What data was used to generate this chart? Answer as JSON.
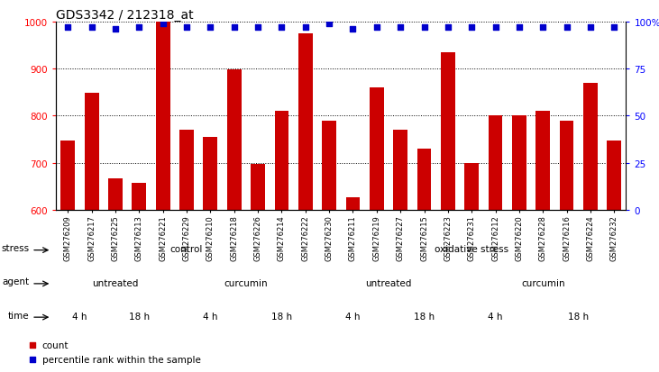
{
  "title": "GDS3342 / 212318_at",
  "samples": [
    "GSM276209",
    "GSM276217",
    "GSM276225",
    "GSM276213",
    "GSM276221",
    "GSM276229",
    "GSM276210",
    "GSM276218",
    "GSM276226",
    "GSM276214",
    "GSM276222",
    "GSM276230",
    "GSM276211",
    "GSM276219",
    "GSM276227",
    "GSM276215",
    "GSM276223",
    "GSM276231",
    "GSM276212",
    "GSM276220",
    "GSM276228",
    "GSM276216",
    "GSM276224",
    "GSM276232"
  ],
  "counts": [
    748,
    848,
    667,
    658,
    1000,
    770,
    755,
    898,
    697,
    810,
    975,
    790,
    627,
    860,
    770,
    730,
    935,
    700,
    800,
    800,
    810,
    790,
    870,
    748
  ],
  "percentile_ranks": [
    97,
    97,
    96,
    97,
    99,
    97,
    97,
    97,
    97,
    97,
    97,
    99,
    96,
    97,
    97,
    97,
    97,
    97,
    97,
    97,
    97,
    97,
    97,
    97
  ],
  "bar_color": "#cc0000",
  "dot_color": "#0000cc",
  "ylim_left": [
    600,
    1000
  ],
  "ylim_right": [
    0,
    100
  ],
  "yticks_left": [
    600,
    700,
    800,
    900,
    1000
  ],
  "yticks_right": [
    0,
    25,
    50,
    75,
    100
  ],
  "ytick_labels_right": [
    "0",
    "25",
    "50",
    "75",
    "100%"
  ],
  "stress_groups": [
    {
      "label": "control",
      "start": 0,
      "end": 11,
      "color": "#aaddaa"
    },
    {
      "label": "oxidative stress",
      "start": 11,
      "end": 24,
      "color": "#44cc44"
    }
  ],
  "agent_groups": [
    {
      "label": "untreated",
      "start": 0,
      "end": 5,
      "color": "#c0c0ee"
    },
    {
      "label": "curcumin",
      "start": 5,
      "end": 11,
      "color": "#9090cc"
    },
    {
      "label": "untreated",
      "start": 11,
      "end": 17,
      "color": "#c0c0ee"
    },
    {
      "label": "curcumin",
      "start": 17,
      "end": 24,
      "color": "#9090cc"
    }
  ],
  "time_groups": [
    {
      "label": "4 h",
      "start": 0,
      "end": 2,
      "color": "#f5c8c0"
    },
    {
      "label": "18 h",
      "start": 2,
      "end": 5,
      "color": "#d08888"
    },
    {
      "label": "4 h",
      "start": 5,
      "end": 8,
      "color": "#f5c8c0"
    },
    {
      "label": "18 h",
      "start": 8,
      "end": 11,
      "color": "#d08888"
    },
    {
      "label": "4 h",
      "start": 11,
      "end": 14,
      "color": "#f5c8c0"
    },
    {
      "label": "18 h",
      "start": 14,
      "end": 17,
      "color": "#d08888"
    },
    {
      "label": "4 h",
      "start": 17,
      "end": 20,
      "color": "#f5c8c0"
    },
    {
      "label": "18 h",
      "start": 20,
      "end": 24,
      "color": "#d08888"
    }
  ],
  "legend_items": [
    {
      "label": "count",
      "color": "#cc0000"
    },
    {
      "label": "percentile rank within the sample",
      "color": "#0000cc"
    }
  ],
  "fig_width": 7.31,
  "fig_height": 4.14,
  "dpi": 100
}
